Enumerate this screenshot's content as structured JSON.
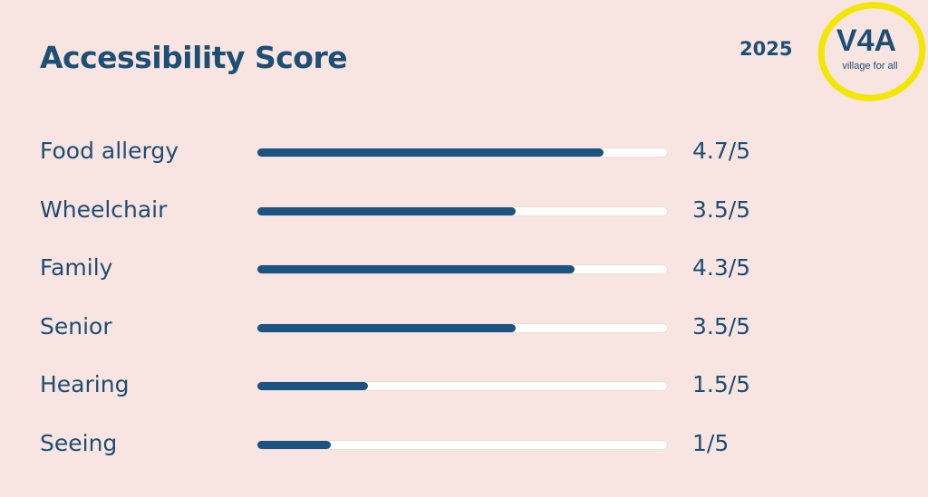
{
  "header": {
    "title": "Accessibility Score",
    "year": "2025"
  },
  "logo": {
    "text": "V4A",
    "tagline": "village for all",
    "ring_color": "#f3e600",
    "text_color": "#1d4e74"
  },
  "colors": {
    "background": "#f8e4e0",
    "bar_fill": "#1b5381",
    "bar_track": "#ffffff",
    "text": "#1d4e74"
  },
  "chart_data": {
    "type": "bar",
    "orientation": "horizontal",
    "title": "Accessibility Score",
    "categories": [
      "Food allergy",
      "Wheelchair",
      "Family",
      "Senior",
      "Hearing",
      "Seeing"
    ],
    "values": [
      4.7,
      3.5,
      4.3,
      3.5,
      1.5,
      1
    ],
    "max": 5,
    "value_labels": [
      "4.7/5",
      "3.5/5",
      "4.3/5",
      "3.5/5",
      "1.5/5",
      "1/5"
    ],
    "grid": false
  }
}
